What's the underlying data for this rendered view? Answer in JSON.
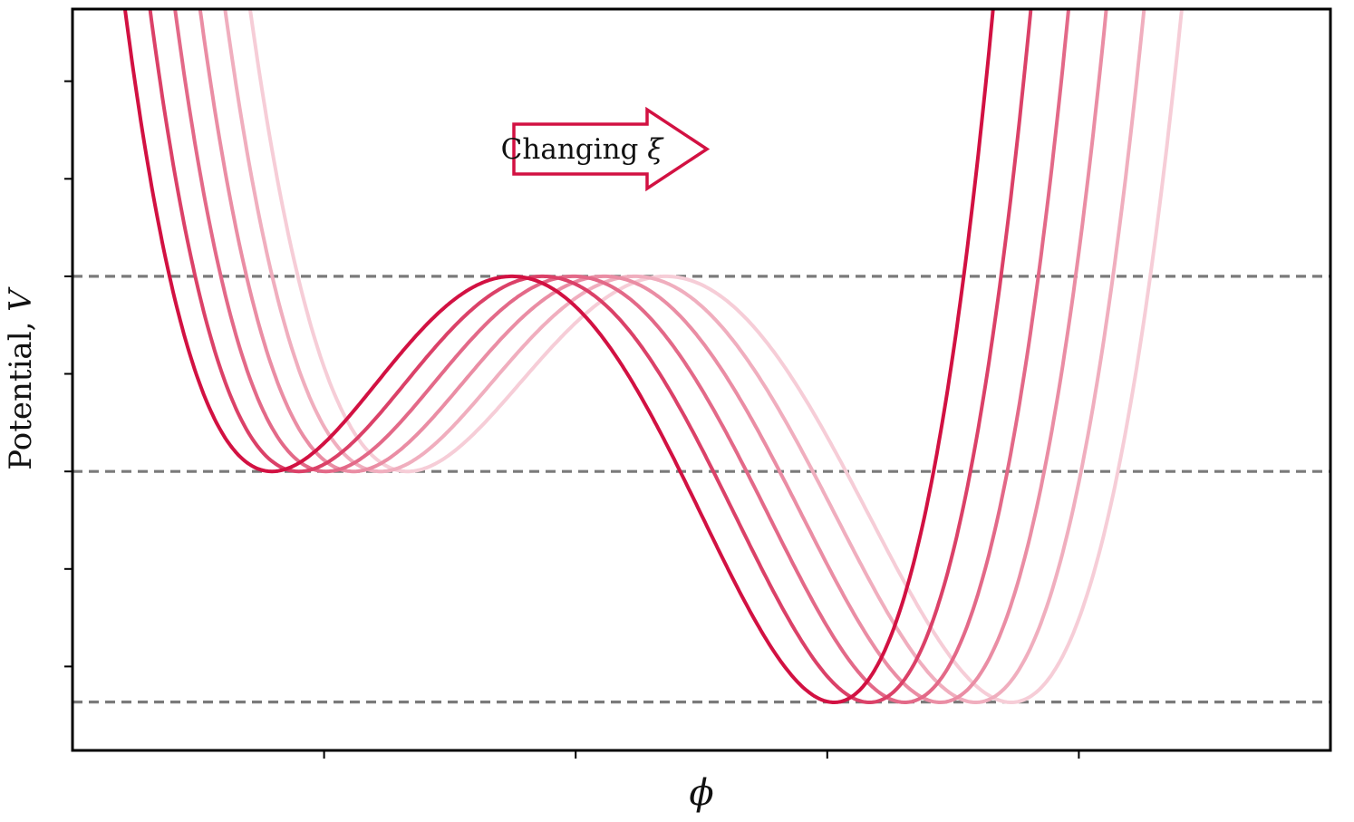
{
  "figure": {
    "ylabel_text": "Potential, ",
    "ylabel_math": "V",
    "xlabel_math": "ϕ",
    "annotation_text": "Changing ",
    "annotation_math": "ξ"
  },
  "chart_data": {
    "type": "line",
    "title": "",
    "xlabel": "ϕ",
    "ylabel": "Potential, V",
    "annotation": "Changing ξ",
    "legend": "none",
    "grid": false,
    "x_range": [
      0,
      10
    ],
    "y_range": [
      -1.43,
      2.37
    ],
    "x_ticks": [
      2,
      4,
      6,
      8
    ],
    "y_ticks": [
      2,
      1.5,
      1,
      0.5,
      0,
      -0.5,
      -1
    ],
    "dashed_levels": [
      1,
      0,
      -1.182
    ],
    "line_width": 4,
    "shape": {
      "family": "tilted quartic double-well",
      "rho": 1.34,
      "formula": "V(u) = (u^4 - (4/3)(2+rho)u^3 + 2(1+rho)u^2) / ((1+2rho)/3), u = (phi - phi1)/width; false vacuum at V=0, barrier top at V=1, true vacuum at V=-1.182"
    },
    "series": [
      {
        "phi1": 1.585,
        "width": 1.91,
        "color": "#d21142"
      },
      {
        "phi1": 1.801,
        "width": 1.938,
        "color": "#db4168"
      },
      {
        "phi1": 2.017,
        "width": 1.966,
        "color": "#e36988"
      },
      {
        "phi1": 2.233,
        "width": 1.994,
        "color": "#ea8da4"
      },
      {
        "phi1": 2.449,
        "width": 2.022,
        "color": "#f0aebe"
      },
      {
        "phi1": 2.665,
        "width": 2.05,
        "color": "#f6cdd7"
      }
    ],
    "colors": {
      "accent": "#d21142",
      "dashed": "#7a7a7a",
      "axis": "#000000",
      "background": "#ffffff"
    }
  }
}
